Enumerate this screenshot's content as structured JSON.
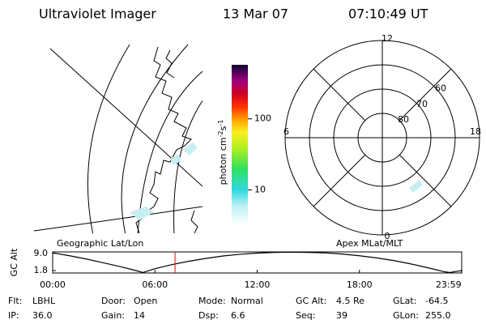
{
  "header": {
    "title": "Ultraviolet Imager",
    "date": "13 Mar 07",
    "time": "07:10:49 UT"
  },
  "colorbar": {
    "label": {
      "text": "photon cm",
      "exp1": "-2",
      "unit2": "s",
      "exp2": "-1"
    },
    "lim": [
      3.2,
      575
    ],
    "ticks": [
      10,
      100
    ],
    "log": true
  },
  "geo_map": {
    "caption": "Geographic Lat/Lon"
  },
  "polar_map": {
    "caption": "Apex MLat/MLT",
    "lat_lim": [
      90,
      50
    ],
    "lat_circles": [
      60,
      70,
      80
    ],
    "mlt_labels": [
      12,
      18,
      6,
      0
    ]
  },
  "chart_data": {
    "type": "line",
    "ylabel": "GC Alt",
    "x": [
      0,
      1,
      2,
      3,
      4,
      5,
      5.3,
      6,
      7,
      8,
      9,
      10,
      11,
      12,
      13,
      14,
      15,
      16,
      17,
      18,
      19,
      20,
      21,
      22,
      23,
      23.3,
      23.98
    ],
    "series": [
      {
        "color": "#000000",
        "values": [
          9.2,
          8.0,
          6.6,
          5.0,
          3.4,
          1.6,
          1.0,
          2.6,
          4.3,
          5.7,
          6.9,
          7.9,
          8.6,
          9.1,
          9.4,
          9.5,
          9.4,
          9.2,
          8.7,
          8.0,
          7.1,
          6.0,
          4.6,
          3.0,
          1.3,
          1.0,
          1.8
        ]
      }
    ],
    "xlim": [
      0,
      24
    ],
    "ylim": [
      0.8,
      9.6
    ],
    "xticks": [
      {
        "value": 0,
        "label": "00:00"
      },
      {
        "value": 6,
        "label": "06:00"
      },
      {
        "value": 12,
        "label": "12:00"
      },
      {
        "value": 18,
        "label": "18:00"
      },
      {
        "value": 23.983,
        "label": "23:59"
      }
    ],
    "yticks": [
      {
        "value": 9,
        "label": "9.0"
      },
      {
        "value": 1.8,
        "label": "1.8"
      }
    ],
    "marker_hour": 7.18,
    "marker_color": "#ff0000"
  },
  "footer": {
    "rows": [
      [
        {
          "label": "Flt:",
          "value": "LBHL"
        },
        {
          "label": "Door:",
          "value": "Open"
        },
        {
          "label": "Mode:",
          "value": "Normal"
        },
        {
          "label": "GC Alt:",
          "value": "4.5 Re"
        },
        {
          "label": "GLat:",
          "value": "-64.5"
        }
      ],
      [
        {
          "label": "IP:",
          "value": "36.0"
        },
        {
          "label": "Gain:",
          "value": "14"
        },
        {
          "label": "Dsp:",
          "value": "6.6"
        },
        {
          "label": "Seq:",
          "value": "39"
        },
        {
          "label": "GLon:",
          "value": "255.0"
        }
      ]
    ]
  }
}
